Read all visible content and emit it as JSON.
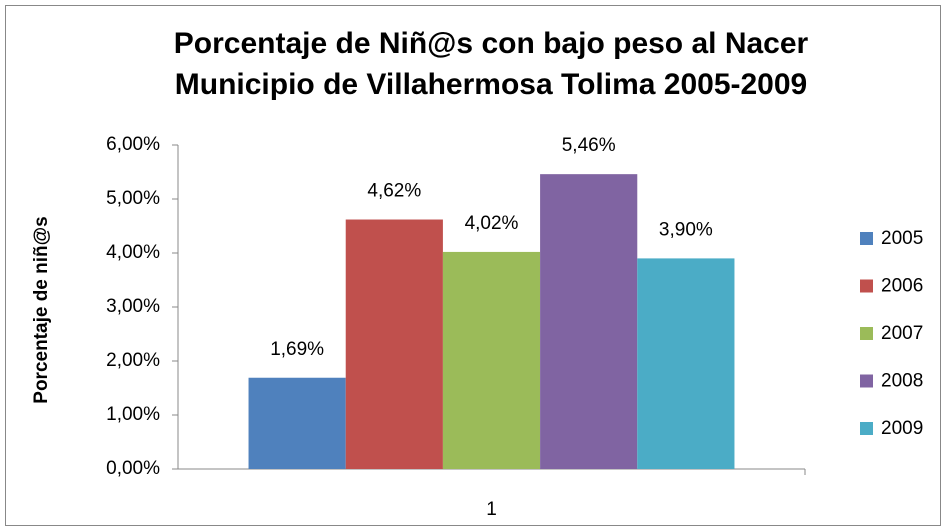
{
  "chart_data": {
    "type": "bar",
    "title": [
      "Porcentaje de Niñ@s con bajo peso al Nacer",
      "Municipio de Villahermosa Tolima 2005-2009"
    ],
    "y_label": "Porcentaje de niñ@s",
    "categories": [
      "1"
    ],
    "series": [
      {
        "name": "2005",
        "color": "#4f81bd",
        "values": [
          1.69
        ],
        "value_labels": [
          "1,69%"
        ]
      },
      {
        "name": "2006",
        "color": "#c0504d",
        "values": [
          4.62
        ],
        "value_labels": [
          "4,62%"
        ]
      },
      {
        "name": "2007",
        "color": "#9bbb59",
        "values": [
          4.02
        ],
        "value_labels": [
          "4,02%"
        ]
      },
      {
        "name": "2008",
        "color": "#8064a2",
        "values": [
          5.46
        ],
        "value_labels": [
          "5,46%"
        ]
      },
      {
        "name": "2009",
        "color": "#4bacc6",
        "values": [
          3.9
        ],
        "value_labels": [
          "3,90%"
        ]
      }
    ],
    "ylim": [
      0,
      6
    ],
    "yticks": [
      {
        "value": 0,
        "label": "0,00%"
      },
      {
        "value": 1,
        "label": "1,00%"
      },
      {
        "value": 2,
        "label": "2,00%"
      },
      {
        "value": 3,
        "label": "3,00%"
      },
      {
        "value": 4,
        "label": "4,00%"
      },
      {
        "value": 5,
        "label": "5,00%"
      },
      {
        "value": 6,
        "label": "6,00%"
      }
    ],
    "grid": false,
    "legend": "right"
  }
}
